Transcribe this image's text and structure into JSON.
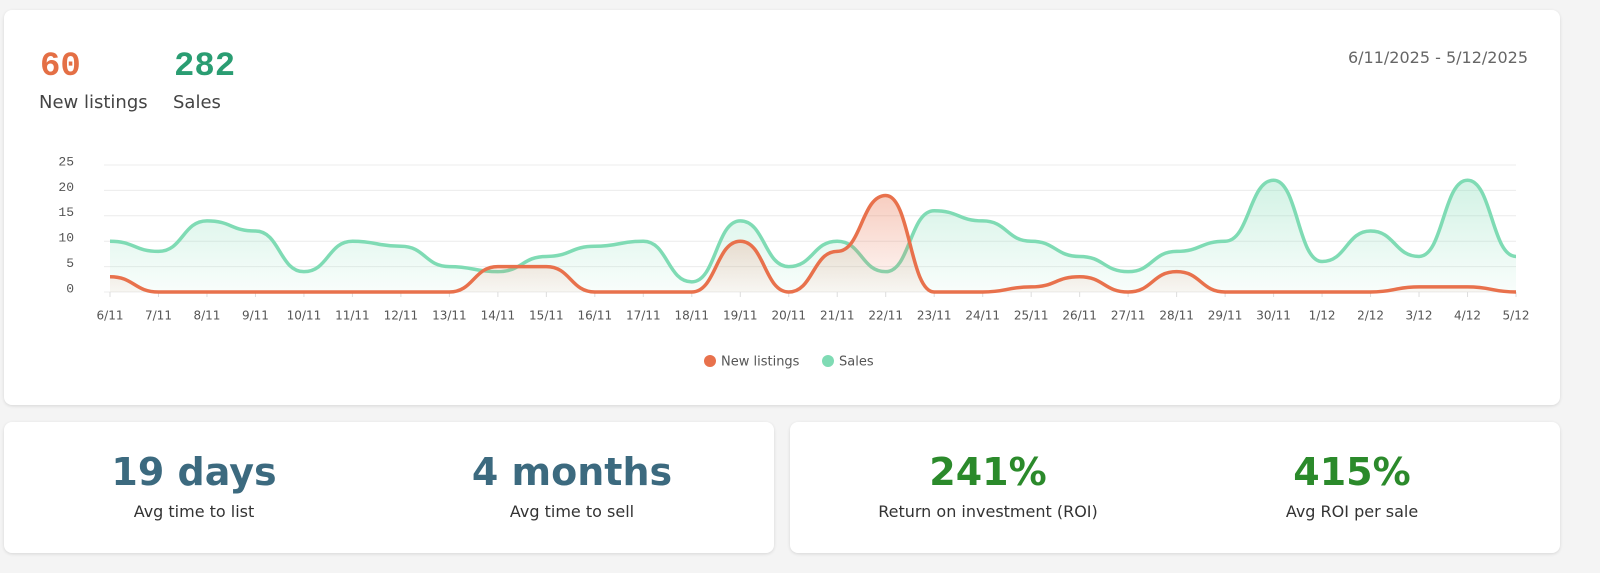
{
  "summary": {
    "new_listings_value": "60",
    "new_listings_label": "New listings",
    "sales_value": "282",
    "sales_label": "Sales",
    "date_range": "6/11/2025 - 5/12/2025"
  },
  "chart_data": {
    "type": "line",
    "categories": [
      "6/11",
      "7/11",
      "8/11",
      "9/11",
      "10/11",
      "11/11",
      "12/11",
      "13/11",
      "14/11",
      "15/11",
      "16/11",
      "17/11",
      "18/11",
      "19/11",
      "20/11",
      "21/11",
      "22/11",
      "23/11",
      "24/11",
      "25/11",
      "26/11",
      "27/11",
      "28/11",
      "29/11",
      "30/11",
      "1/12",
      "2/12",
      "3/12",
      "4/12",
      "5/12"
    ],
    "series": [
      {
        "name": "New listings",
        "color": "#e8714c",
        "values": [
          3,
          0,
          0,
          0,
          0,
          0,
          0,
          0,
          5,
          5,
          0,
          0,
          0,
          10,
          0,
          8,
          19,
          0,
          0,
          1,
          3,
          0,
          4,
          0,
          0,
          0,
          0,
          1,
          1,
          0
        ]
      },
      {
        "name": "Sales",
        "color": "#7fdbb4",
        "values": [
          10,
          8,
          14,
          12,
          4,
          10,
          9,
          5,
          4,
          7,
          9,
          10,
          2,
          14,
          5,
          10,
          4,
          16,
          14,
          10,
          7,
          4,
          8,
          10,
          22,
          6,
          12,
          7,
          22,
          7
        ]
      }
    ],
    "ylim": [
      0,
      25
    ],
    "yticks": [
      0,
      5,
      10,
      15,
      20,
      25
    ],
    "grid": true
  },
  "stats": [
    {
      "value": "19 days",
      "label": "Avg time to list"
    },
    {
      "value": "4 months",
      "label": "Avg time to sell"
    },
    {
      "value": "241%",
      "label": "Return on investment (ROI)"
    },
    {
      "value": "415%",
      "label": "Avg ROI per sale"
    }
  ]
}
